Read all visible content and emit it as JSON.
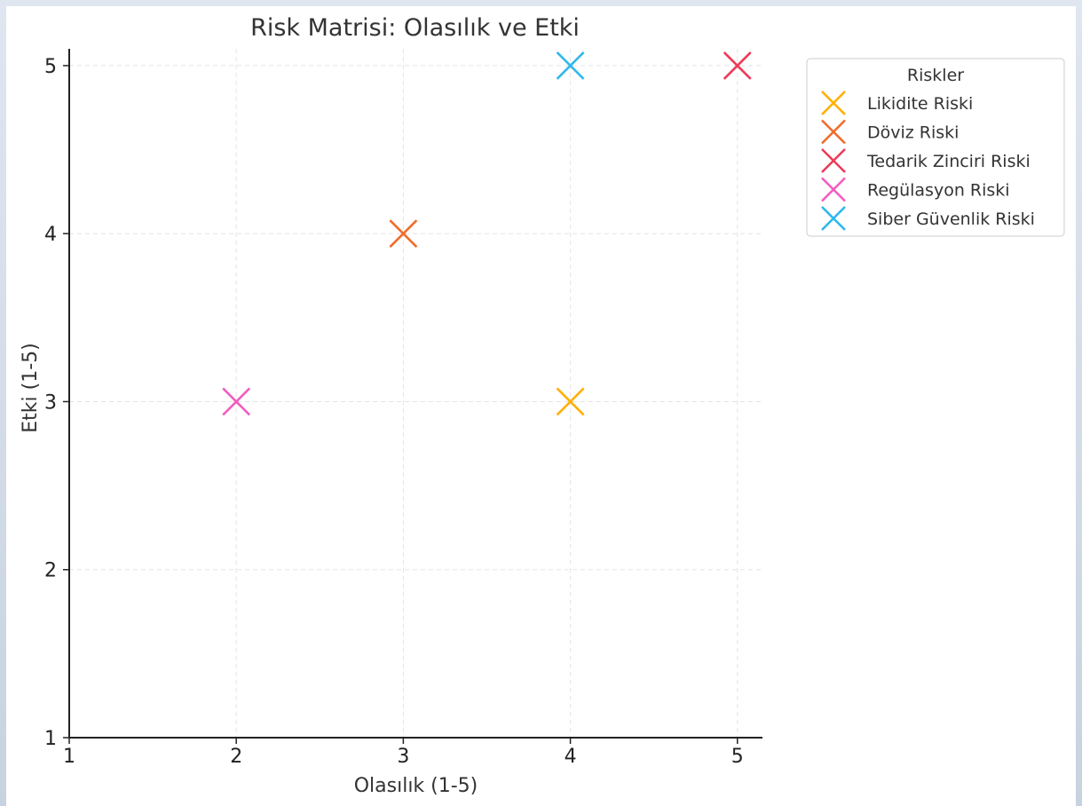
{
  "chart_data": {
    "type": "scatter",
    "title": "Risk Matrisi: Olasılık ve Etki",
    "xlabel": "Olasılık (1-5)",
    "ylabel": "Etki (1-5)",
    "xlim": [
      1,
      5.15
    ],
    "ylim": [
      1,
      5.1
    ],
    "xticks": [
      1,
      2,
      3,
      4,
      5
    ],
    "yticks": [
      1,
      2,
      3,
      4,
      5
    ],
    "grid": true,
    "marker": "x",
    "legend": {
      "title": "Riskler",
      "placement": "outside-right-top"
    },
    "series": [
      {
        "name": "Likidite Riski",
        "color": "#FFB000",
        "x": [
          4
        ],
        "y": [
          3
        ]
      },
      {
        "name": "Döviz Riski",
        "color": "#F26B2A",
        "x": [
          3
        ],
        "y": [
          4
        ]
      },
      {
        "name": "Tedarik Zinciri Riski",
        "color": "#EE3A57",
        "x": [
          5
        ],
        "y": [
          5
        ]
      },
      {
        "name": "Regülasyon Riski",
        "color": "#F25CC0",
        "x": [
          2
        ],
        "y": [
          3
        ]
      },
      {
        "name": "Siber Güvenlik Riski",
        "color": "#2FB8EE",
        "x": [
          4
        ],
        "y": [
          5
        ]
      }
    ]
  }
}
